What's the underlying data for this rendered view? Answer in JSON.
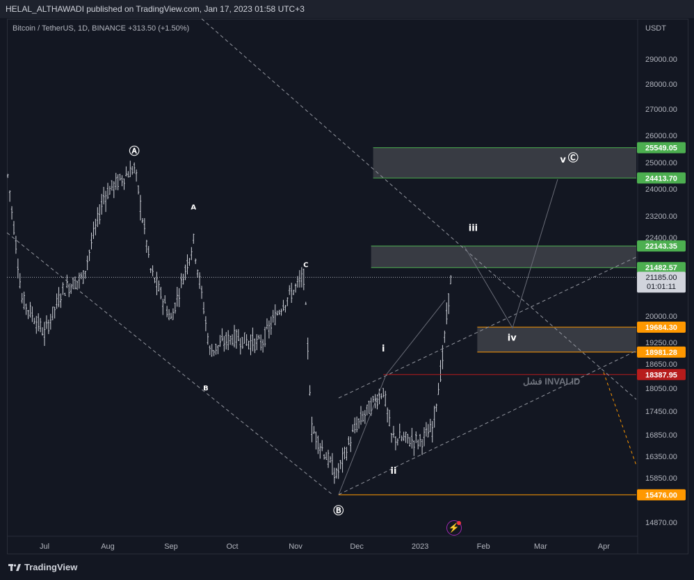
{
  "header": {
    "publisher_line": "HELAL_ALTHAWADI published on TradingView.com, Jan 17, 2023 01:58 UTC+3"
  },
  "legend": {
    "symbol_line": "Bitcoin / TetherUS, 1D, BINANCE  +313.50 (+1.50%)"
  },
  "footer": {
    "brand": "TradingView"
  },
  "icons": {
    "brand_logo": "tradingview-logo-icon",
    "ideas": "lightning-bolt-icon"
  },
  "colors": {
    "background": "#131722",
    "candles": "#d1d4dc",
    "green_label": "#4caf50",
    "orange_label": "#ff9800",
    "red_label": "#b71c1c",
    "zone_fill": "#3a3d46"
  },
  "chart_data": {
    "type": "candlestick",
    "symbol": "Bitcoin / TetherUS",
    "interval": "1D",
    "exchange": "BINANCE",
    "change": "+313.50",
    "change_pct": "(+1.50%)",
    "currency": "USDT",
    "x_tick_labels": [
      "Jul",
      "Aug",
      "Sep",
      "Oct",
      "Nov",
      "Dec",
      "2023",
      "Feb",
      "Mar",
      "Apr"
    ],
    "y_tick_labels": [
      "29000.00",
      "28000.00",
      "27000.00",
      "26000.00",
      "25000.00",
      "24000.00",
      "23200.00",
      "22400.00",
      "20000.00",
      "19250.00",
      "18650.00",
      "18050.00",
      "17450.00",
      "16850.00",
      "16350.00",
      "15850.00",
      "14870.00"
    ],
    "y_tick_values": [
      29000,
      28000,
      27000,
      26000,
      25000,
      24000,
      23200,
      22400,
      20000,
      19250,
      18650,
      18050,
      17450,
      16850,
      16350,
      15850,
      14870
    ],
    "current_price": "21185.00",
    "countdown": "01:01:11",
    "price_levels": [
      {
        "label": "25549.05",
        "value": 25549.05,
        "color": "#4caf50"
      },
      {
        "label": "24413.70",
        "value": 24413.7,
        "color": "#4caf50"
      },
      {
        "label": "22143.35",
        "value": 22143.35,
        "color": "#4caf50"
      },
      {
        "label": "21482.57",
        "value": 21482.57,
        "color": "#4caf50"
      },
      {
        "label": "19684.30",
        "value": 19684.3,
        "color": "#ff9800"
      },
      {
        "label": "18981.28",
        "value": 18981.28,
        "color": "#ff9800"
      },
      {
        "label": "18387.95",
        "value": 18387.95,
        "color": "#b71c1c"
      },
      {
        "label": "15476.00",
        "value": 15476.0,
        "color": "#ff9800"
      }
    ],
    "wave_labels": [
      {
        "text": "Ⓐ",
        "date": "2022-08-14",
        "price": 25300
      },
      {
        "text": "A",
        "date": "2022-09-12",
        "price": 23400
      },
      {
        "text": "B",
        "date": "2022-09-18",
        "price": 18000
      },
      {
        "text": "C",
        "date": "2022-11-06",
        "price": 21500
      },
      {
        "text": "Ⓑ",
        "date": "2022-11-22",
        "price": 15050
      },
      {
        "text": "i",
        "date": "2022-12-14",
        "price": 19000
      },
      {
        "text": "ii",
        "date": "2022-12-19",
        "price": 15950
      },
      {
        "text": "iii",
        "date": "2023-01-27",
        "price": 22650
      },
      {
        "text": "iv",
        "date": "2023-02-15",
        "price": 19300
      },
      {
        "text": "v",
        "date": "2023-03-12",
        "price": 25000
      },
      {
        "text": "Ⓒ",
        "date": "2023-03-17",
        "price": 25050
      }
    ],
    "zones": [
      {
        "name": "target-zone-top",
        "from_date": "2022-12-09",
        "price_top": 25549.05,
        "price_bottom": 24413.7
      },
      {
        "name": "target-zone-iii",
        "from_date": "2022-12-08",
        "price_top": 22143.35,
        "price_bottom": 21482.57
      },
      {
        "name": "zone-iv",
        "from_date": "2023-01-29",
        "price_top": 19684.3,
        "price_bottom": 18981.28
      }
    ],
    "invalid_level": {
      "text": "فشل INVALID",
      "price": 18387.95
    },
    "low_level": {
      "price": 15476.0
    }
  }
}
